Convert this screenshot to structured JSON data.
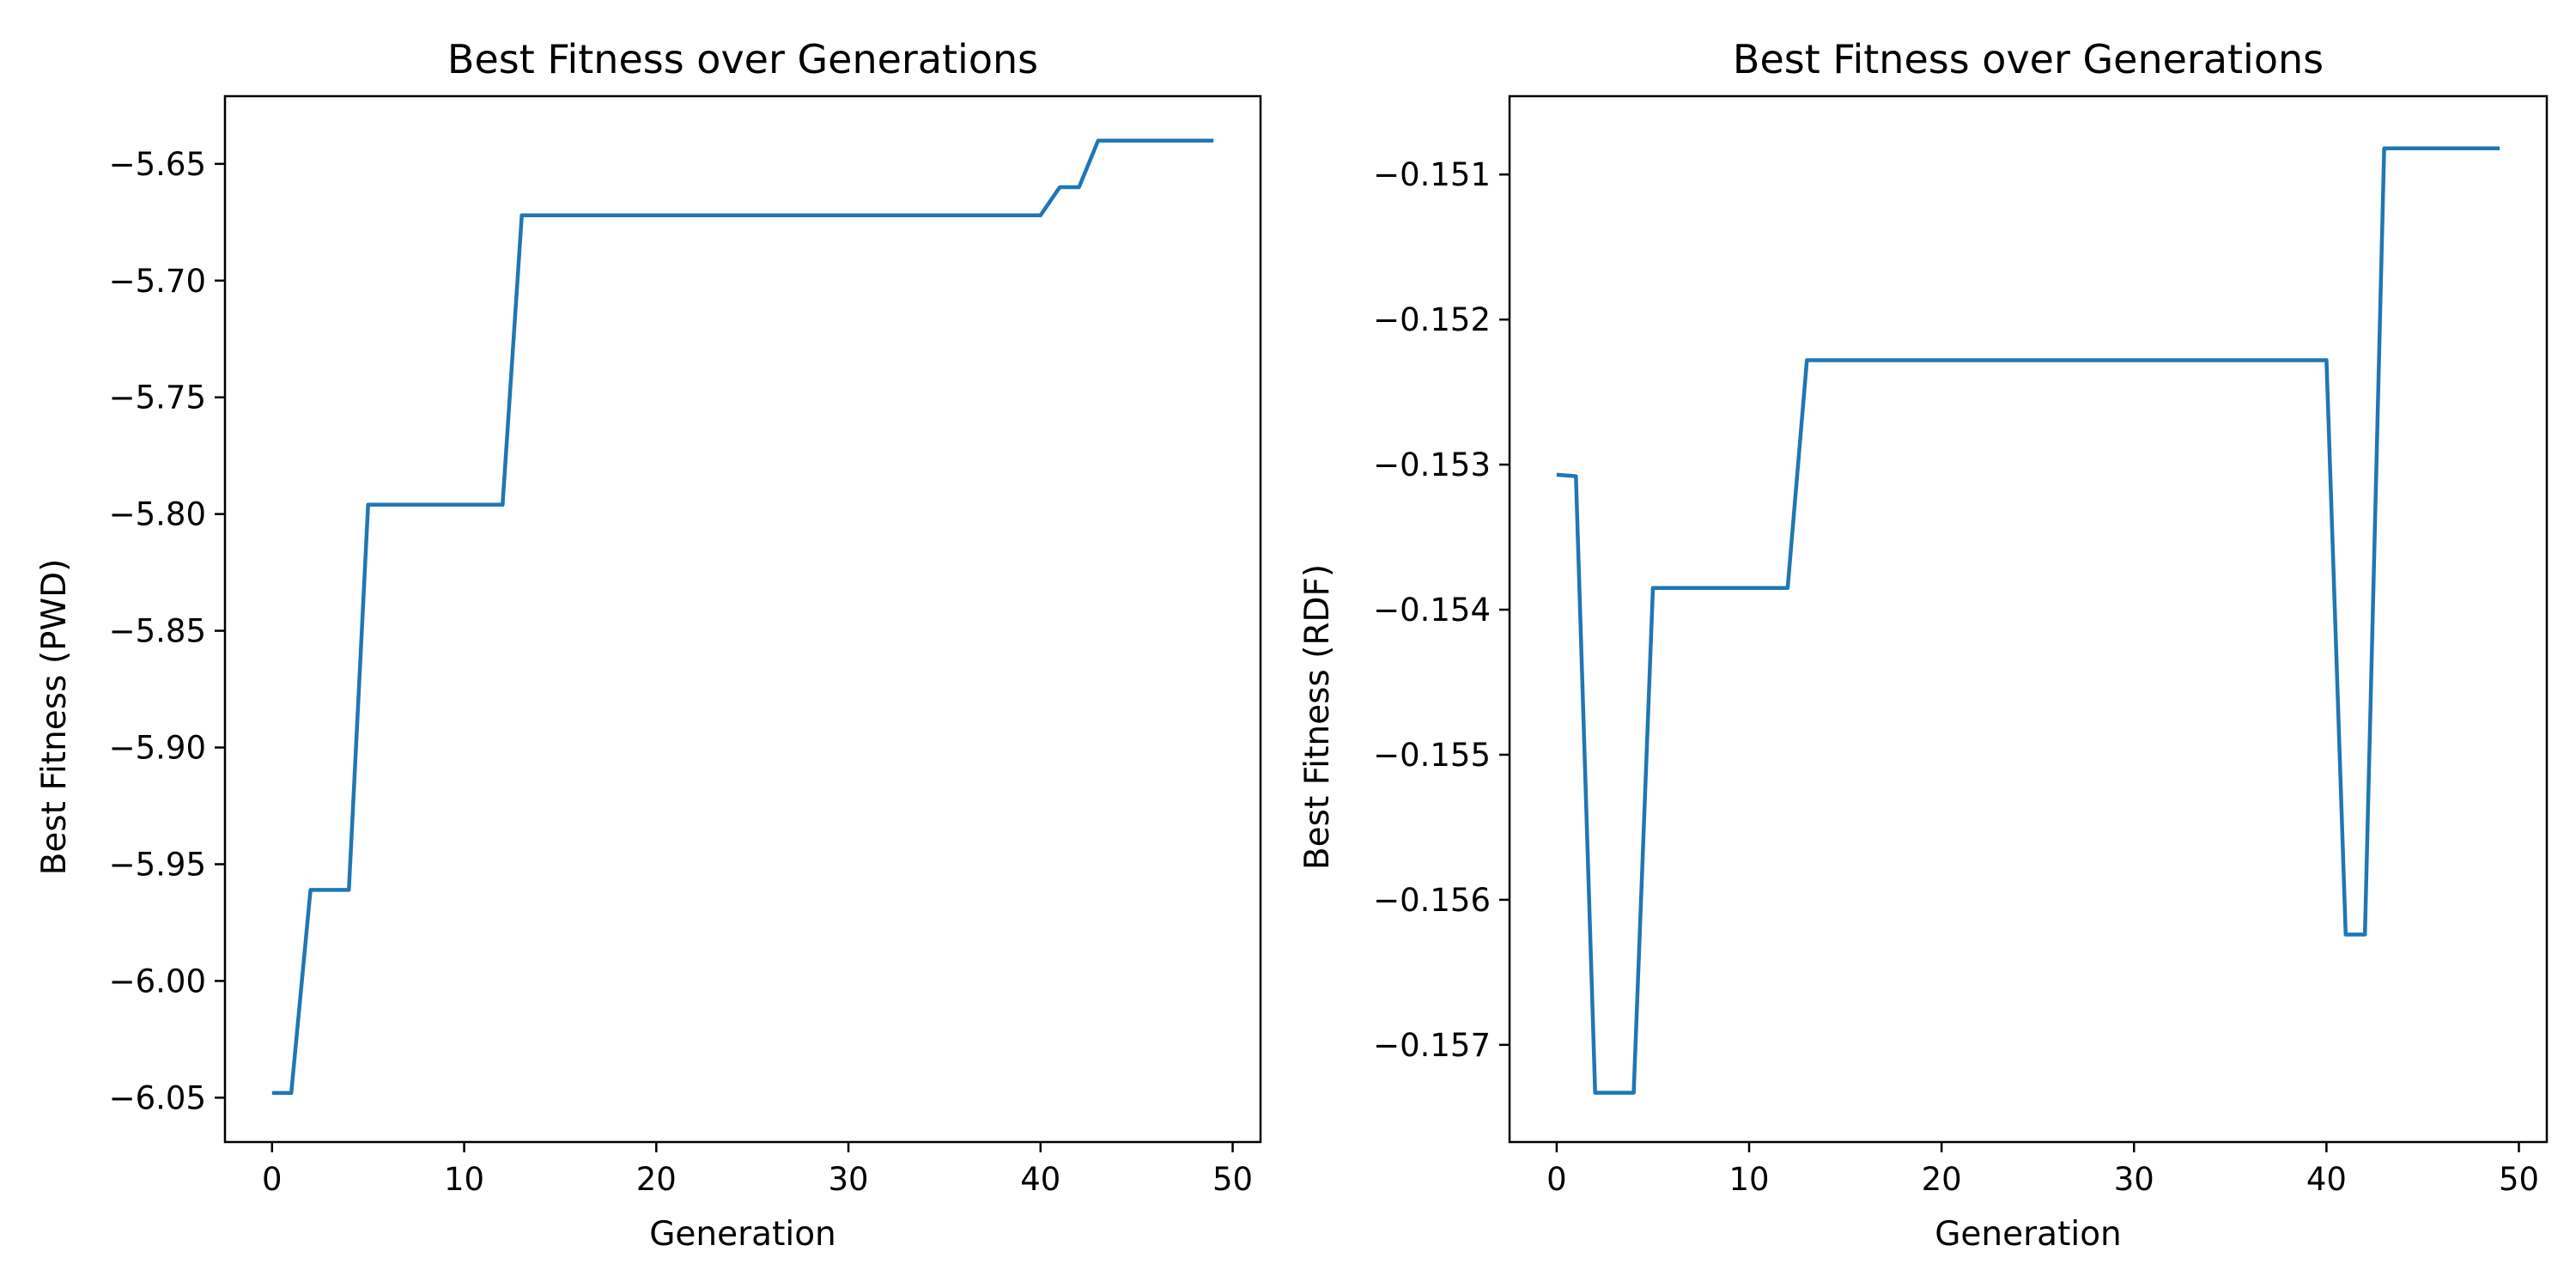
{
  "chart_data": [
    {
      "type": "line",
      "title": "Best Fitness over Generations",
      "xlabel": "Generation",
      "ylabel": "Best Fitness (PWD)",
      "xlim": [
        -2.45,
        51.45
      ],
      "ylim": [
        -6.069,
        -5.621
      ],
      "xticks": [
        0,
        10,
        20,
        30,
        40,
        50
      ],
      "xtick_labels": [
        "0",
        "10",
        "20",
        "30",
        "40",
        "50"
      ],
      "yticks": [
        -6.05,
        -6.0,
        -5.95,
        -5.9,
        -5.85,
        -5.8,
        -5.75,
        -5.7,
        -5.65
      ],
      "ytick_labels": [
        "−6.05",
        "−6.00",
        "−5.95",
        "−5.90",
        "−5.85",
        "−5.80",
        "−5.75",
        "−5.70",
        "−5.65"
      ],
      "grid": false,
      "color": "#1f77b4",
      "series": [
        {
          "x": [
            0,
            1,
            2,
            3,
            4,
            5,
            6,
            7,
            8,
            9,
            10,
            11,
            12,
            13,
            14,
            15,
            16,
            17,
            18,
            19,
            20,
            21,
            22,
            23,
            24,
            25,
            26,
            27,
            28,
            29,
            30,
            31,
            32,
            33,
            34,
            35,
            36,
            37,
            38,
            39,
            40,
            41,
            42,
            43,
            44,
            45,
            46,
            47,
            48,
            49
          ],
          "values": [
            -6.048,
            -6.048,
            -5.961,
            -5.961,
            -5.961,
            -5.796,
            -5.796,
            -5.796,
            -5.796,
            -5.796,
            -5.796,
            -5.796,
            -5.796,
            -5.672,
            -5.672,
            -5.672,
            -5.672,
            -5.672,
            -5.672,
            -5.672,
            -5.672,
            -5.672,
            -5.672,
            -5.672,
            -5.672,
            -5.672,
            -5.672,
            -5.672,
            -5.672,
            -5.672,
            -5.672,
            -5.672,
            -5.672,
            -5.672,
            -5.672,
            -5.672,
            -5.672,
            -5.672,
            -5.672,
            -5.672,
            -5.672,
            -5.66,
            -5.66,
            -5.64,
            -5.64,
            -5.64,
            -5.64,
            -5.64,
            -5.64,
            -5.64
          ]
        }
      ]
    },
    {
      "type": "line",
      "title": "Best Fitness over Generations",
      "xlabel": "Generation",
      "ylabel": "Best Fitness (RDF)",
      "xlim": [
        -2.45,
        51.45
      ],
      "ylim": [
        -0.15767,
        -0.15046
      ],
      "xticks": [
        0,
        10,
        20,
        30,
        40,
        50
      ],
      "xtick_labels": [
        "0",
        "10",
        "20",
        "30",
        "40",
        "50"
      ],
      "yticks": [
        -0.157,
        -0.156,
        -0.155,
        -0.154,
        -0.153,
        -0.152,
        -0.151
      ],
      "ytick_labels": [
        "−0.157",
        "−0.156",
        "−0.155",
        "−0.154",
        "−0.153",
        "−0.152",
        "−0.151"
      ],
      "grid": false,
      "color": "#1f77b4",
      "series": [
        {
          "x": [
            0,
            1,
            2,
            3,
            4,
            5,
            6,
            7,
            8,
            9,
            10,
            11,
            12,
            13,
            14,
            15,
            16,
            17,
            18,
            19,
            20,
            21,
            22,
            23,
            24,
            25,
            26,
            27,
            28,
            29,
            30,
            31,
            32,
            33,
            34,
            35,
            36,
            37,
            38,
            39,
            40,
            41,
            42,
            43,
            44,
            45,
            46,
            47,
            48,
            49
          ],
          "values": [
            -0.15307,
            -0.15308,
            -0.15733,
            -0.15733,
            -0.15733,
            -0.15385,
            -0.15385,
            -0.15385,
            -0.15385,
            -0.15385,
            -0.15385,
            -0.15385,
            -0.15385,
            -0.15228,
            -0.15228,
            -0.15228,
            -0.15228,
            -0.15228,
            -0.15228,
            -0.15228,
            -0.15228,
            -0.15228,
            -0.15228,
            -0.15228,
            -0.15228,
            -0.15228,
            -0.15228,
            -0.15228,
            -0.15228,
            -0.15228,
            -0.15228,
            -0.15228,
            -0.15228,
            -0.15228,
            -0.15228,
            -0.15228,
            -0.15228,
            -0.15228,
            -0.15228,
            -0.15228,
            -0.15228,
            -0.15624,
            -0.15624,
            -0.15082,
            -0.15082,
            -0.15082,
            -0.15082,
            -0.15082,
            -0.15082,
            -0.15082
          ]
        }
      ]
    }
  ]
}
